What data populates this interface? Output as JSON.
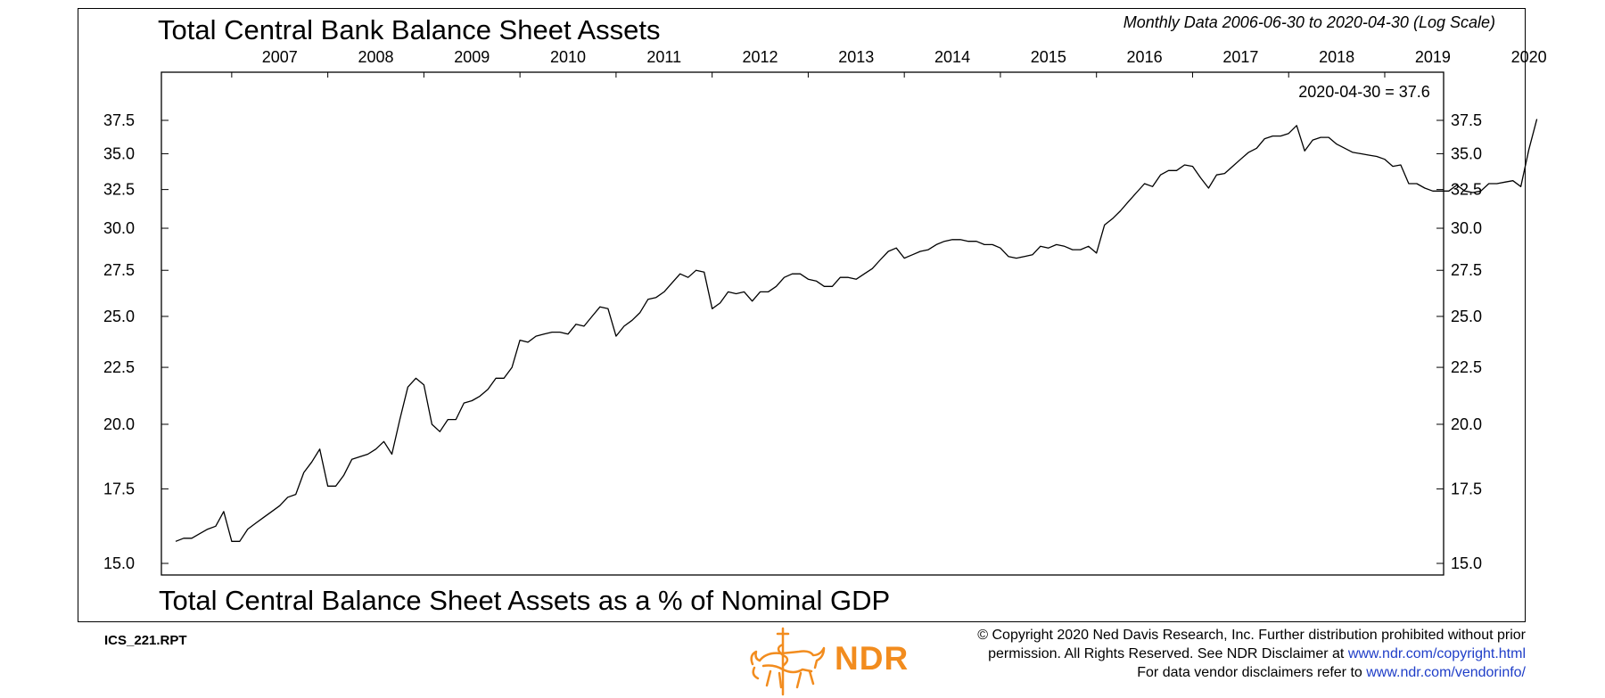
{
  "chart_data": {
    "type": "line",
    "title": "Total Central Bank Balance Sheet Assets",
    "subtitle": "Monthly Data 2006-06-30 to 2020-04-30 (Log Scale)",
    "bottom_title": "Total Central Balance Sheet Assets as a % of Nominal GDP",
    "annotation": "2020-04-30 = 37.6",
    "x_tick_labels": [
      "2007",
      "2008",
      "2009",
      "2010",
      "2011",
      "2012",
      "2013",
      "2014",
      "2015",
      "2016",
      "2017",
      "2018",
      "2019",
      "2020"
    ],
    "y_tick_labels": [
      "15.0",
      "17.5",
      "20.0",
      "22.5",
      "25.0",
      "27.5",
      "30.0",
      "32.5",
      "35.0",
      "37.5"
    ],
    "ylim": [
      15.0,
      37.5
    ],
    "y_scale": "log",
    "x_start": "2006-06",
    "x_end": "2020-04",
    "grid": false,
    "series": [
      {
        "values": [
          15.7,
          15.8,
          15.8,
          15.95,
          16.1,
          16.2,
          16.7,
          15.7,
          15.7,
          16.1,
          16.3,
          16.5,
          16.7,
          16.9,
          17.2,
          17.3,
          18.1,
          18.5,
          19.0,
          17.6,
          17.6,
          18.0,
          18.6,
          18.7,
          18.8,
          19.0,
          19.3,
          18.8,
          20.2,
          21.6,
          22.0,
          21.7,
          20.0,
          19.7,
          20.2,
          20.2,
          20.9,
          21.0,
          21.2,
          21.5,
          22.0,
          22.0,
          22.5,
          23.8,
          23.7,
          24.0,
          24.1,
          24.2,
          24.2,
          24.1,
          24.6,
          24.5,
          25.0,
          25.5,
          25.4,
          24.0,
          24.5,
          24.8,
          25.2,
          25.9,
          26.0,
          26.3,
          26.8,
          27.3,
          27.1,
          27.5,
          27.4,
          25.4,
          25.7,
          26.3,
          26.2,
          26.3,
          25.8,
          26.3,
          26.3,
          26.6,
          27.1,
          27.3,
          27.3,
          27.0,
          26.9,
          26.6,
          26.6,
          27.1,
          27.1,
          27.0,
          27.3,
          27.6,
          28.1,
          28.6,
          28.8,
          28.2,
          28.4,
          28.6,
          28.7,
          29.0,
          29.2,
          29.3,
          29.3,
          29.2,
          29.2,
          29.0,
          29.0,
          28.8,
          28.3,
          28.2,
          28.3,
          28.4,
          28.9,
          28.8,
          29.0,
          28.9,
          28.7,
          28.7,
          28.9,
          28.5,
          30.2,
          30.6,
          31.1,
          31.7,
          32.3,
          32.9,
          32.7,
          33.5,
          33.8,
          33.8,
          34.2,
          34.1,
          33.3,
          32.6,
          33.5,
          33.6,
          34.1,
          34.6,
          35.1,
          35.4,
          36.1,
          36.3,
          36.3,
          36.5,
          37.1,
          35.2,
          36.0,
          36.2,
          36.2,
          35.7,
          35.4,
          35.1,
          35.0,
          34.9,
          34.8,
          34.6,
          34.1,
          34.2,
          32.9,
          32.9,
          32.6,
          32.4,
          32.4,
          32.4,
          32.8,
          32.4,
          32.3,
          32.4,
          32.9,
          32.9,
          33.0,
          33.1,
          32.7,
          35.3,
          37.6
        ]
      }
    ]
  },
  "footer": {
    "report_id": "ICS_221.RPT",
    "brand": "NDR",
    "copyright_line1": "© Copyright 2020 Ned Davis Research, Inc. Further distribution prohibited without prior",
    "copyright_line2_text": "permission. All Rights Reserved. See NDR Disclaimer at ",
    "copyright_line2_link": "www.ndr.com/copyright.html",
    "copyright_line3_text": "For data vendor disclaimers refer to ",
    "copyright_line3_link": "www.ndr.com/vendorinfo/"
  },
  "colors": {
    "line": "#000000",
    "brand": "#f28c1e",
    "link": "#1f3ec8"
  }
}
